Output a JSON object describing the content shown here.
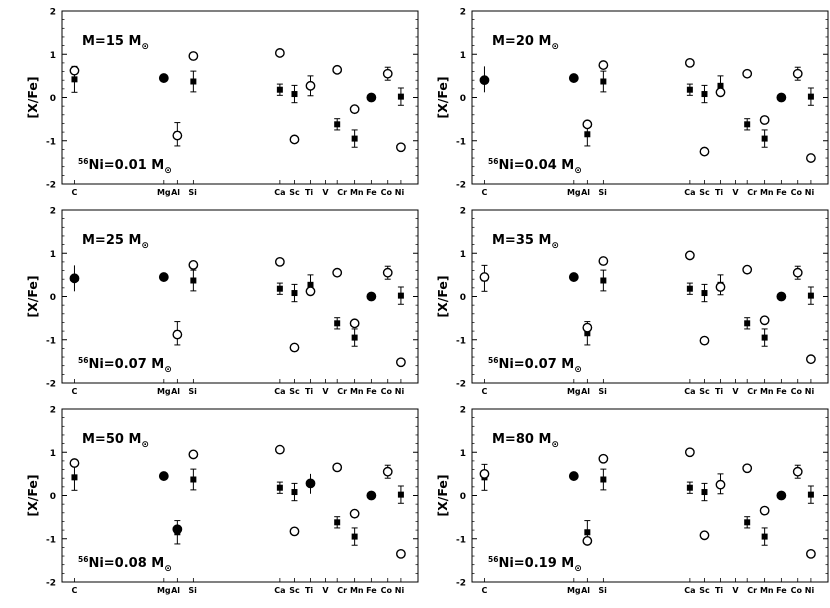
{
  "chart_data": {
    "type": "scatter",
    "element_labels": [
      "C",
      "Mg",
      "Al",
      "Si",
      "Ca",
      "Sc",
      "Ti",
      "V",
      "Cr",
      "Mn",
      "Fe",
      "Co",
      "Ni"
    ],
    "panels": [
      {
        "mass_label": "M=15 M",
        "mass_sub": "⊙",
        "ni_sup": "56",
        "ni_label": "Ni=0.01 M",
        "ni_sub": "⊙",
        "ylabel": "[X/Fe]",
        "ylim": [
          -2,
          2
        ],
        "yticks": [
          "-2",
          "-1",
          "0",
          "1",
          "2"
        ],
        "model": {
          "C": 0.62,
          "Mg": 0.45,
          "Al": -0.88,
          "Si": 0.96,
          "Ca": 1.03,
          "Sc": -0.97,
          "Ti": 0.27,
          "Cr": 0.64,
          "Mn": -0.27,
          "Co": 0.55,
          "Ni": -1.15
        },
        "model_filled": [
          "Mg",
          "Fe"
        ]
      },
      {
        "mass_label": "M=20 M",
        "mass_sub": "⊙",
        "ni_sup": "56",
        "ni_label": "Ni=0.04 M",
        "ni_sub": "⊙",
        "ylabel": "[X/Fe]",
        "ylim": [
          -2,
          2
        ],
        "yticks": [
          "-2",
          "-1",
          "0",
          "1",
          "2"
        ],
        "model": {
          "C": 0.4,
          "Mg": 0.45,
          "Al": -0.62,
          "Si": 0.75,
          "Ca": 0.8,
          "Sc": -1.25,
          "Ti": 0.12,
          "Cr": 0.55,
          "Mn": -0.52,
          "Co": 0.55,
          "Ni": -1.4
        },
        "model_filled": [
          "C",
          "Mg",
          "Fe"
        ]
      },
      {
        "mass_label": "M=25 M",
        "mass_sub": "⊙",
        "ni_sup": "56",
        "ni_label": "Ni=0.07 M",
        "ni_sub": "⊙",
        "ylabel": "[X/Fe]",
        "ylim": [
          -2,
          2
        ],
        "yticks": [
          "-2",
          "-1",
          "0",
          "1",
          "2"
        ],
        "model": {
          "C": 0.42,
          "Mg": 0.45,
          "Al": -0.88,
          "Si": 0.73,
          "Ca": 0.8,
          "Sc": -1.18,
          "Ti": 0.12,
          "Cr": 0.55,
          "Mn": -0.62,
          "Co": 0.55,
          "Ni": -1.52
        },
        "model_filled": [
          "C",
          "Mg",
          "Fe"
        ]
      },
      {
        "mass_label": "M=35 M",
        "mass_sub": "⊙",
        "ni_sup": "56",
        "ni_label": "Ni=0.07 M",
        "ni_sub": "⊙",
        "ylabel": "[X/Fe]",
        "ylim": [
          -2,
          2
        ],
        "yticks": [
          "-2",
          "-1",
          "0",
          "1",
          "2"
        ],
        "model": {
          "C": 0.45,
          "Mg": 0.45,
          "Al": -0.72,
          "Si": 0.82,
          "Ca": 0.95,
          "Sc": -1.02,
          "Ti": 0.22,
          "Cr": 0.62,
          "Mn": -0.55,
          "Co": 0.55,
          "Ni": -1.45
        },
        "model_filled": [
          "Mg",
          "Fe"
        ]
      },
      {
        "mass_label": "M=50 M",
        "mass_sub": "⊙",
        "ni_sup": "56",
        "ni_label": "Ni=0.08 M",
        "ni_sub": "⊙",
        "ylabel": "[X/Fe]",
        "ylim": [
          -2,
          2
        ],
        "yticks": [
          "-2",
          "-1",
          "0",
          "1",
          "2"
        ],
        "model": {
          "C": 0.75,
          "Mg": 0.45,
          "Al": -0.78,
          "Si": 0.95,
          "Ca": 1.06,
          "Sc": -0.83,
          "Ti": 0.28,
          "Cr": 0.65,
          "Mn": -0.42,
          "Co": 0.55,
          "Ni": -1.35
        },
        "model_filled": [
          "Mg",
          "Al",
          "Ti",
          "Fe"
        ]
      },
      {
        "mass_label": "M=80 M",
        "mass_sub": "⊙",
        "ni_sup": "56",
        "ni_label": "Ni=0.19 M",
        "ni_sub": "⊙",
        "ylabel": "[X/Fe]",
        "ylim": [
          -2,
          2
        ],
        "yticks": [
          "-2",
          "-1",
          "0",
          "1",
          "2"
        ],
        "model": {
          "C": 0.5,
          "Mg": 0.45,
          "Al": -1.05,
          "Si": 0.85,
          "Ca": 1.0,
          "Sc": -0.92,
          "Ti": 0.25,
          "Cr": 0.63,
          "Mn": -0.35,
          "Co": 0.55,
          "Ni": -1.35
        },
        "model_filled": [
          "Mg",
          "Fe"
        ]
      }
    ],
    "observed": [
      {
        "el": "C",
        "y": 0.42,
        "lo": 0.12,
        "hi": 0.72
      },
      {
        "el": "Mg",
        "y": 0.45,
        "lo": 0.37,
        "hi": 0.53
      },
      {
        "el": "Al",
        "y": -0.85,
        "lo": -1.12,
        "hi": -0.58
      },
      {
        "el": "Si",
        "y": 0.37,
        "lo": 0.13,
        "hi": 0.61
      },
      {
        "el": "Ca",
        "y": 0.18,
        "lo": 0.05,
        "hi": 0.31
      },
      {
        "el": "Sc",
        "y": 0.08,
        "lo": -0.12,
        "hi": 0.28
      },
      {
        "el": "Ti",
        "y": 0.27,
        "lo": 0.04,
        "hi": 0.5
      },
      {
        "el": "Cr",
        "y": -0.62,
        "lo": -0.75,
        "hi": -0.49
      },
      {
        "el": "Mn",
        "y": -0.95,
        "lo": -1.15,
        "hi": -0.75
      },
      {
        "el": "Co",
        "y": 0.55,
        "lo": 0.4,
        "hi": 0.7
      },
      {
        "el": "Ni",
        "y": 0.02,
        "lo": -0.18,
        "hi": 0.22
      }
    ]
  }
}
